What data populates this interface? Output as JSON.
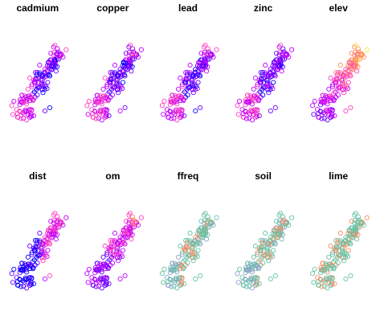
{
  "chart_data": {
    "type": "scatter",
    "layout": "small-multiples 2 rows x 5 columns",
    "legend": "none",
    "grid": false,
    "axes": false,
    "marker": "open-circle",
    "panels": [
      {
        "title": "cadmium",
        "palette": "continuous",
        "colors": [
          "#0000ff",
          "#6a00ff",
          "#c000ff",
          "#ff40c0",
          "#ff9060",
          "#ffe040"
        ]
      },
      {
        "title": "copper",
        "palette": "continuous",
        "colors": [
          "#0000ff",
          "#6a00ff",
          "#c000ff",
          "#ff40c0",
          "#ff9060",
          "#ffe040"
        ]
      },
      {
        "title": "lead",
        "palette": "continuous",
        "colors": [
          "#0000ff",
          "#6a00ff",
          "#c000ff",
          "#ff40c0",
          "#ff9060",
          "#ffe040"
        ]
      },
      {
        "title": "zinc",
        "palette": "continuous",
        "colors": [
          "#0000ff",
          "#6a00ff",
          "#c000ff",
          "#ff40c0",
          "#ff9060",
          "#ffe040"
        ]
      },
      {
        "title": "elev",
        "palette": "continuous",
        "colors": [
          "#0000ff",
          "#6a00ff",
          "#c000ff",
          "#ff40c0",
          "#ff9060",
          "#ffe040"
        ]
      },
      {
        "title": "dist",
        "palette": "continuous",
        "colors": [
          "#0000ff",
          "#6a00ff",
          "#c000ff",
          "#ff40c0",
          "#ff9060",
          "#ffe040"
        ]
      },
      {
        "title": "om",
        "palette": "continuous",
        "colors": [
          "#0000ff",
          "#6a00ff",
          "#c000ff",
          "#ff40c0",
          "#ff9060",
          "#ffe040"
        ]
      },
      {
        "title": "ffreq",
        "palette": "categorical",
        "colors": [
          "#66c2a5",
          "#fc8d62",
          "#8da0cb"
        ]
      },
      {
        "title": "soil",
        "palette": "categorical",
        "colors": [
          "#66c2a5",
          "#fc8d62",
          "#8da0cb"
        ]
      },
      {
        "title": "lime",
        "palette": "categorical",
        "colors": [
          "#66c2a5",
          "#fc8d62"
        ]
      }
    ]
  }
}
